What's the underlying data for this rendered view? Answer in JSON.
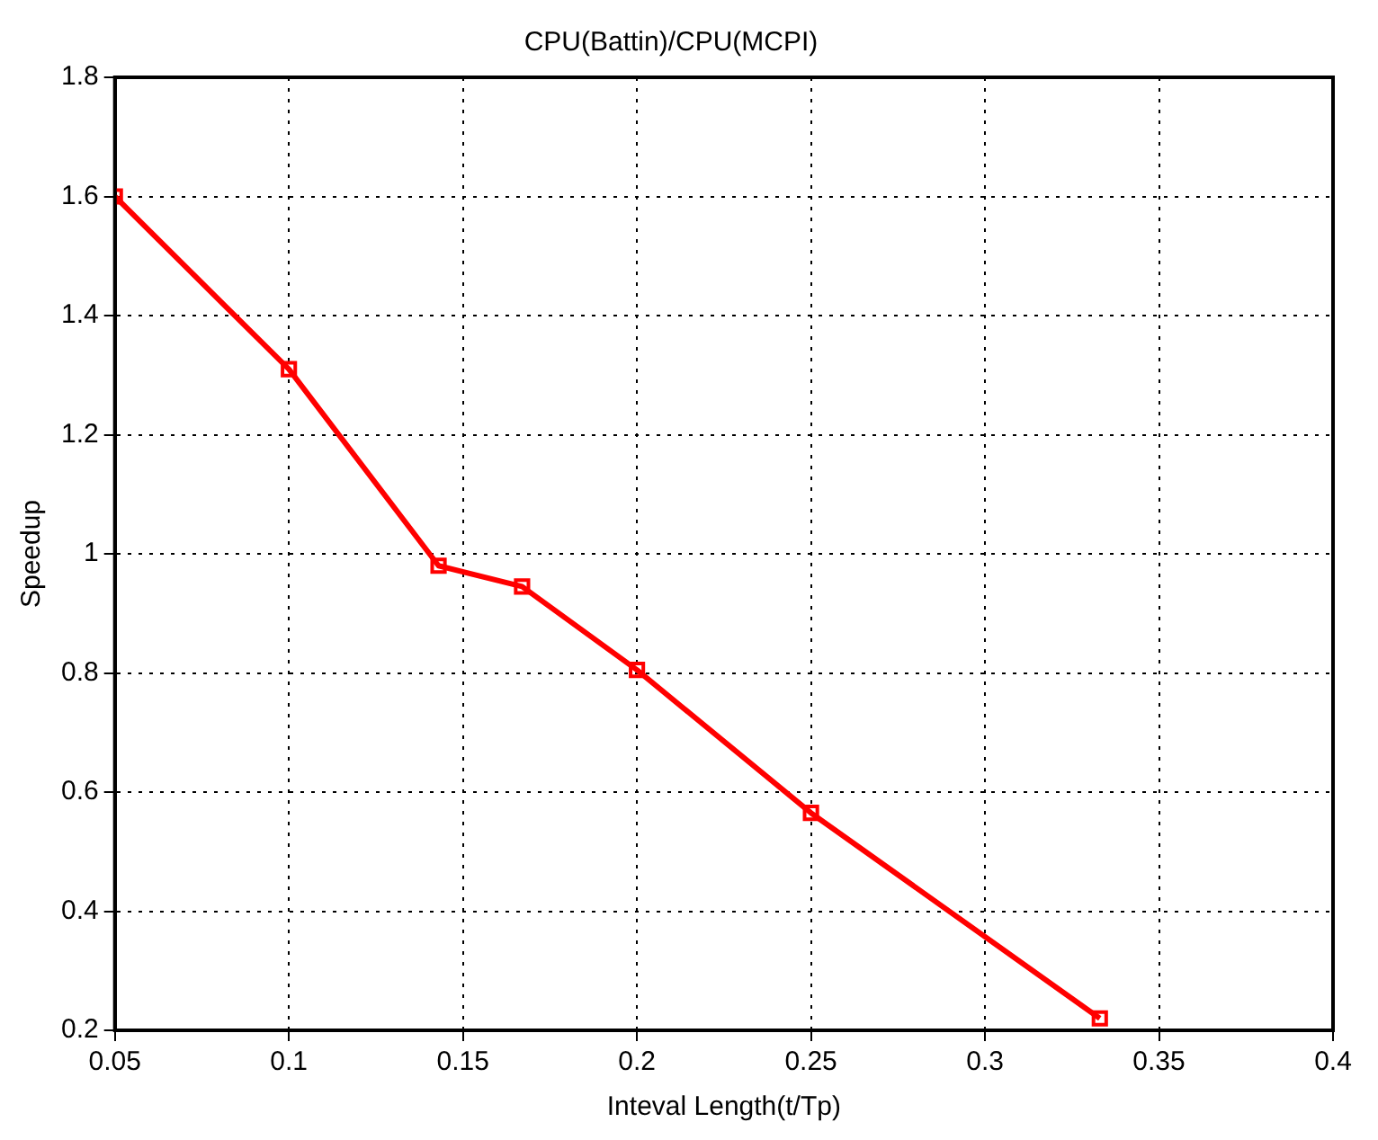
{
  "chart_data": {
    "type": "line",
    "title": "CPU(Battin)/CPU(MCPI)",
    "xlabel": "Inteval Length(t/Tp)",
    "ylabel": "Speedup",
    "x": [
      0.05,
      0.1,
      0.143,
      0.167,
      0.2,
      0.25,
      0.333
    ],
    "series": [
      {
        "color": "#ff0000",
        "values": [
          1.6,
          1.31,
          0.98,
          0.945,
          0.805,
          0.565,
          0.22
        ]
      }
    ],
    "xlim": [
      0.05,
      0.4
    ],
    "xticks": [
      0.05,
      0.1,
      0.15,
      0.2,
      0.25,
      0.3,
      0.35,
      0.4
    ],
    "ylim": [
      0.2,
      1.8
    ],
    "yticks": [
      0.2,
      0.4,
      0.6,
      0.8,
      1,
      1.2,
      1.4,
      1.6,
      1.8
    ],
    "grid": true,
    "legend": false,
    "marker": "square",
    "line_style": "solid"
  }
}
